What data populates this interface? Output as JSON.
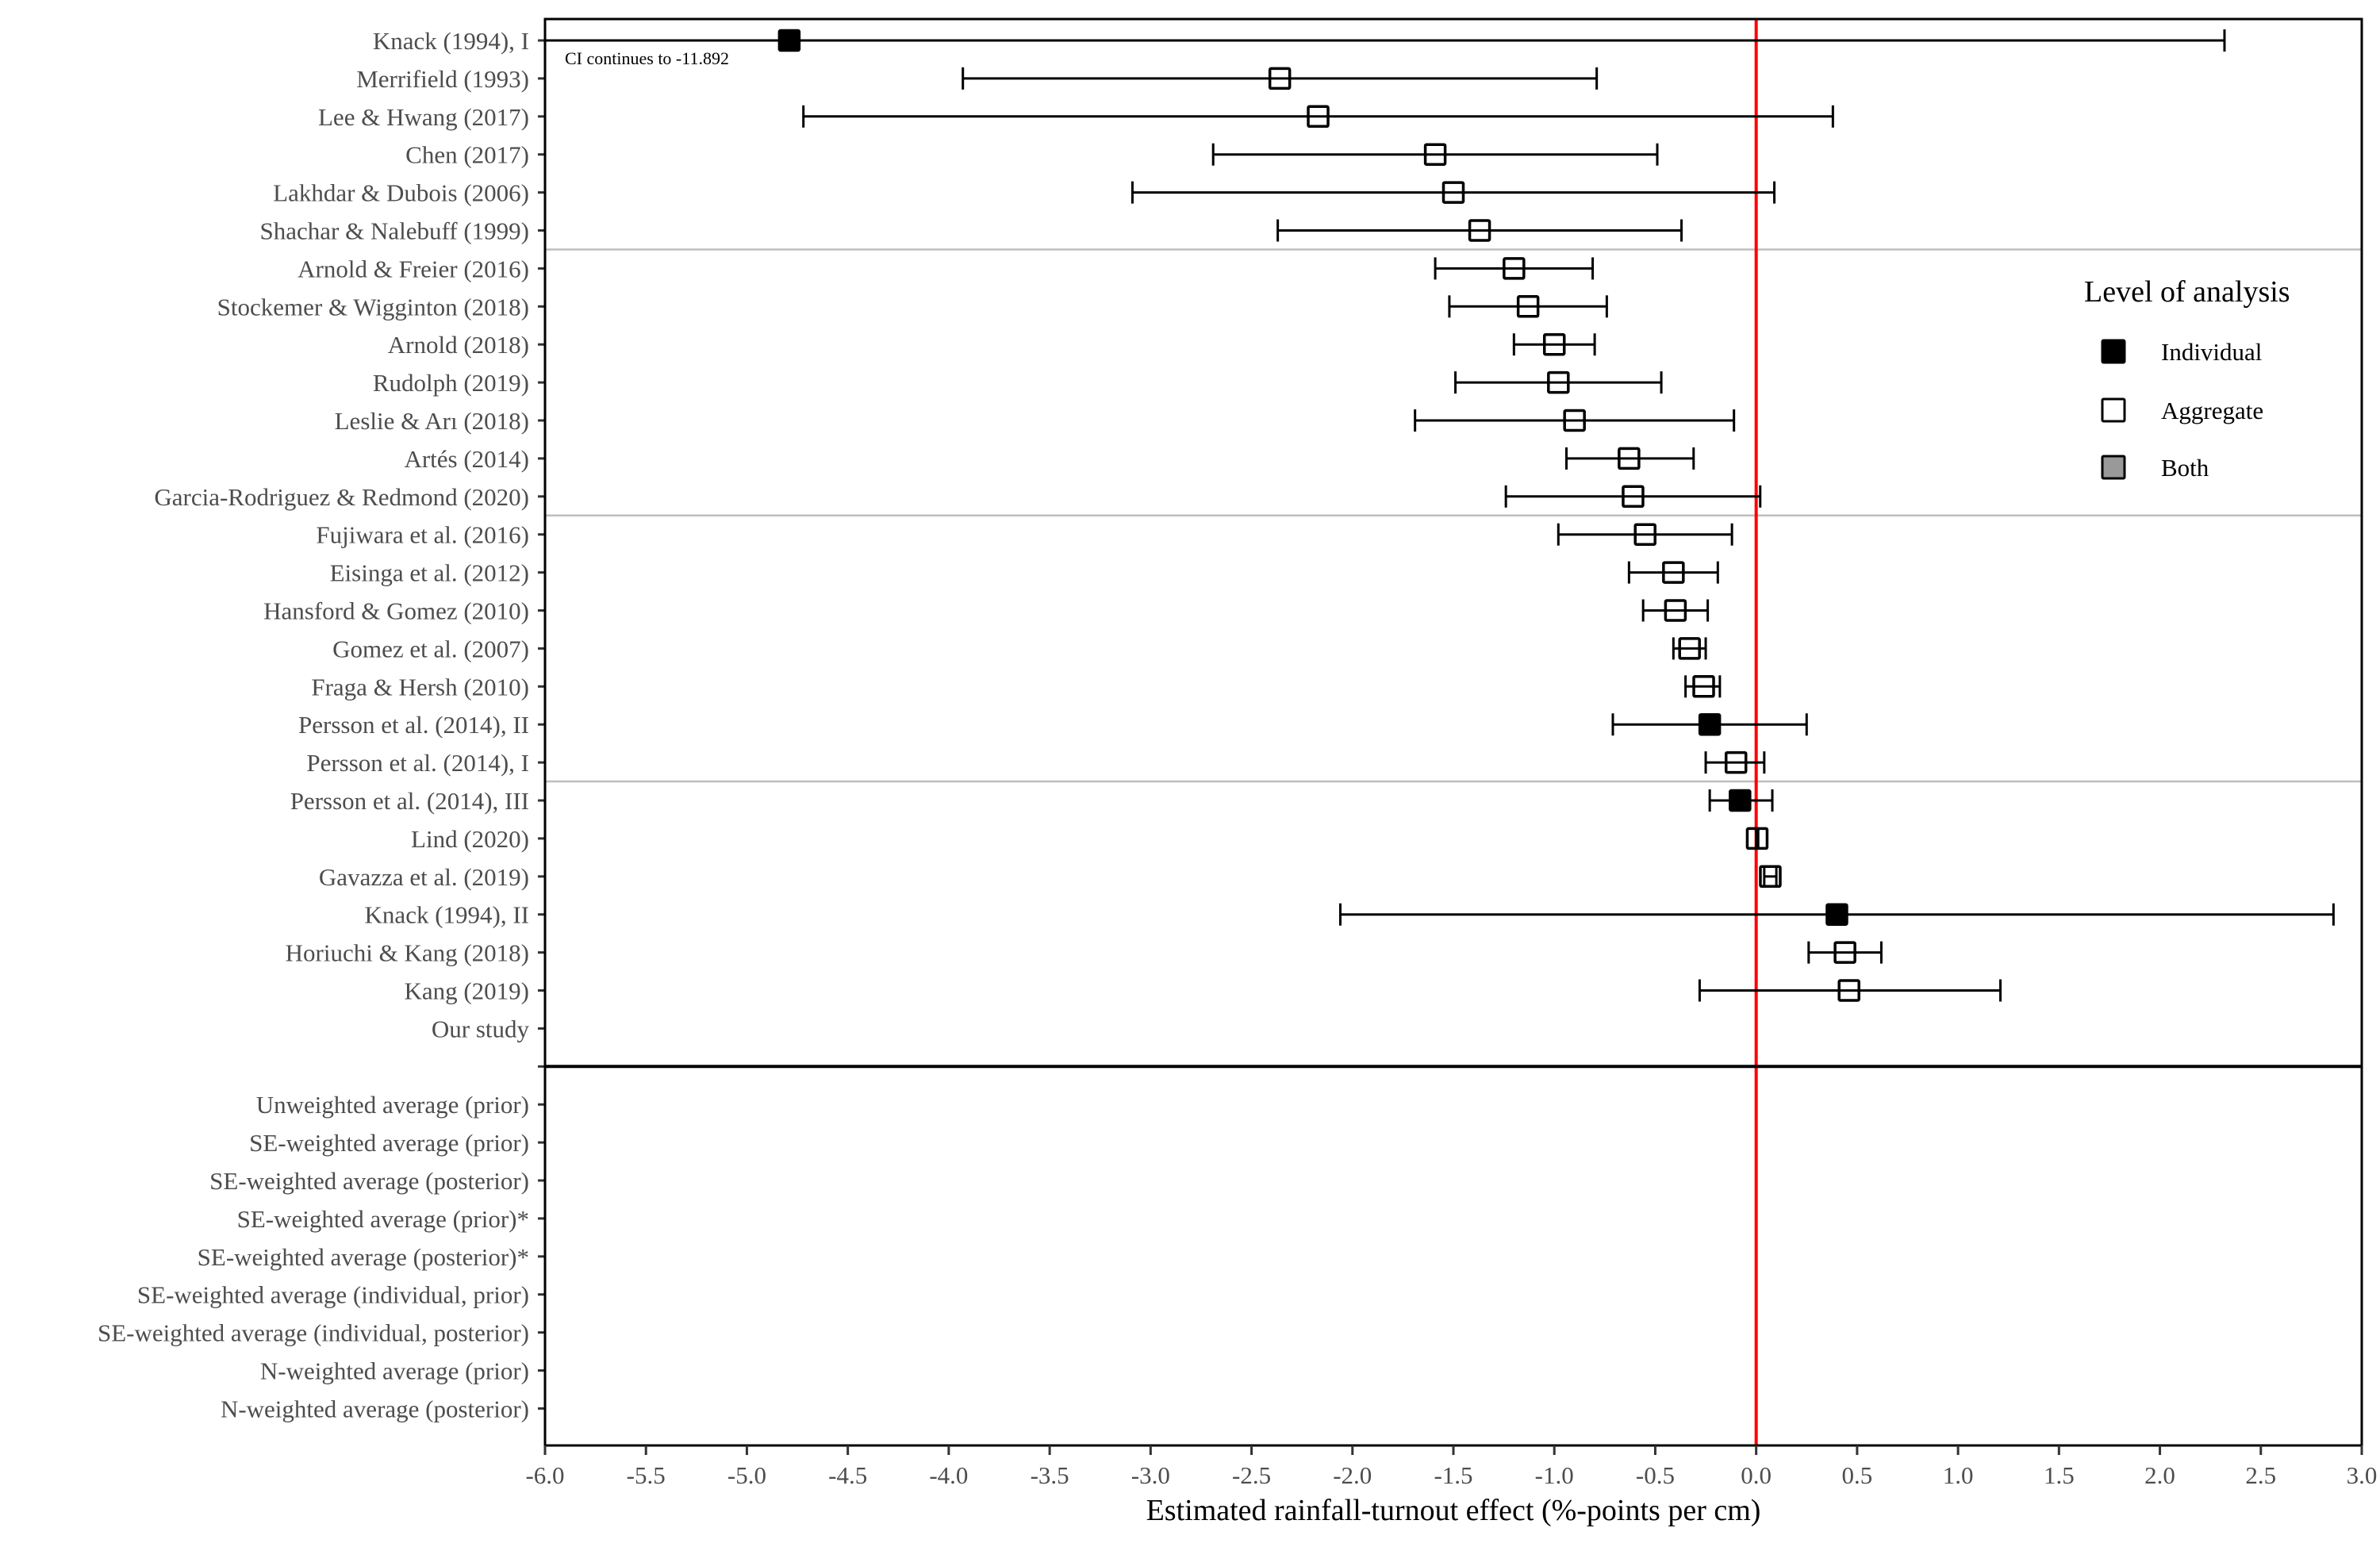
{
  "chart_data": {
    "type": "forest",
    "title": "",
    "xlabel": "Estimated rainfall-turnout effect (%-points per cm)",
    "ylabel": "",
    "xlim": [
      -6.0,
      3.0
    ],
    "xticks": [
      "-6.0",
      "-5.5",
      "-5.0",
      "-4.5",
      "-4.0",
      "-3.5",
      "-3.0",
      "-2.5",
      "-2.0",
      "-1.5",
      "-1.0",
      "-0.5",
      "0.0",
      "0.5",
      "1.0",
      "1.5",
      "2.0",
      "2.5",
      "3.0"
    ],
    "reference_line": {
      "x": 0.0,
      "color": "#ff0000"
    },
    "annotation": {
      "text": "CI continues to -11.892",
      "row": "Knack (1994), I"
    },
    "legend": {
      "title": "Level of analysis",
      "position": "right",
      "items": [
        {
          "label": "Individual",
          "fill": "#000000"
        },
        {
          "label": "Aggregate",
          "fill": "#ffffff"
        },
        {
          "label": "Both",
          "fill": "#999999"
        }
      ]
    },
    "group_separators_after": [
      "Shachar & Nalebuff (1999)",
      "Garcia-Rodriguez & Redmond (2020)",
      "Persson et al. (2014), I"
    ],
    "main_separator_after": "Our study",
    "studies": [
      {
        "label": "Knack (1994), I",
        "estimate": -4.79,
        "lower": -11.892,
        "upper": 2.32,
        "level": "Individual"
      },
      {
        "label": "Merrifield (1993)",
        "estimate": -2.36,
        "lower": -3.93,
        "upper": -0.79,
        "level": "Aggregate"
      },
      {
        "label": "Lee & Hwang (2017)",
        "estimate": -2.17,
        "lower": -4.72,
        "upper": 0.38,
        "level": "Aggregate"
      },
      {
        "label": "Chen (2017)",
        "estimate": -1.59,
        "lower": -2.69,
        "upper": -0.49,
        "level": "Aggregate"
      },
      {
        "label": "Lakhdar & Dubois (2006)",
        "estimate": -1.5,
        "lower": -3.09,
        "upper": 0.09,
        "level": "Aggregate"
      },
      {
        "label": "Shachar & Nalebuff (1999)",
        "estimate": -1.37,
        "lower": -2.37,
        "upper": -0.37,
        "level": "Aggregate"
      },
      {
        "label": "Arnold & Freier (2016)",
        "estimate": -1.2,
        "lower": -1.59,
        "upper": -0.81,
        "level": "Aggregate"
      },
      {
        "label": "Stockemer & Wigginton (2018)",
        "estimate": -1.13,
        "lower": -1.52,
        "upper": -0.74,
        "level": "Aggregate"
      },
      {
        "label": "Arnold (2018)",
        "estimate": -1.0,
        "lower": -1.2,
        "upper": -0.8,
        "level": "Aggregate"
      },
      {
        "label": "Rudolph (2019)",
        "estimate": -0.98,
        "lower": -1.49,
        "upper": -0.47,
        "level": "Aggregate"
      },
      {
        "label": "Leslie & Arı (2018)",
        "estimate": -0.9,
        "lower": -1.69,
        "upper": -0.11,
        "level": "Aggregate"
      },
      {
        "label": "Artés (2014)",
        "estimate": -0.63,
        "lower": -0.94,
        "upper": -0.31,
        "level": "Aggregate"
      },
      {
        "label": "Garcia-Rodriguez & Redmond (2020)",
        "estimate": -0.61,
        "lower": -1.24,
        "upper": 0.02,
        "level": "Aggregate"
      },
      {
        "label": "Fujiwara et al. (2016)",
        "estimate": -0.55,
        "lower": -0.98,
        "upper": -0.12,
        "level": "Aggregate"
      },
      {
        "label": "Eisinga et al. (2012)",
        "estimate": -0.41,
        "lower": -0.63,
        "upper": -0.19,
        "level": "Aggregate"
      },
      {
        "label": "Hansford & Gomez (2010)",
        "estimate": -0.4,
        "lower": -0.56,
        "upper": -0.24,
        "level": "Aggregate"
      },
      {
        "label": "Gomez et al. (2007)",
        "estimate": -0.33,
        "lower": -0.41,
        "upper": -0.25,
        "level": "Aggregate"
      },
      {
        "label": "Fraga & Hersh (2010)",
        "estimate": -0.26,
        "lower": -0.35,
        "upper": -0.18,
        "level": "Aggregate"
      },
      {
        "label": "Persson et al. (2014), II",
        "estimate": -0.23,
        "lower": -0.71,
        "upper": 0.25,
        "level": "Individual"
      },
      {
        "label": "Persson et al. (2014), I",
        "estimate": -0.1,
        "lower": -0.25,
        "upper": 0.04,
        "level": "Aggregate"
      },
      {
        "label": "Persson et al. (2014), III",
        "estimate": -0.08,
        "lower": -0.23,
        "upper": 0.08,
        "level": "Individual"
      },
      {
        "label": "Lind (2020)",
        "estimate": 0.005,
        "lower": 0.0,
        "upper": 0.01,
        "level": "Aggregate"
      },
      {
        "label": "Gavazza et al. (2019)",
        "estimate": 0.07,
        "lower": 0.04,
        "upper": 0.1,
        "level": "Aggregate"
      },
      {
        "label": "Knack (1994), II",
        "estimate": 0.4,
        "lower": -2.06,
        "upper": 2.86,
        "level": "Individual"
      },
      {
        "label": "Horiuchi & Kang (2018)",
        "estimate": 0.44,
        "lower": 0.26,
        "upper": 0.62,
        "level": "Aggregate"
      },
      {
        "label": "Kang (2019)",
        "estimate": 0.46,
        "lower": -0.28,
        "upper": 1.21,
        "level": "Aggregate"
      },
      {
        "label": "Our study",
        "estimate": null,
        "lower": null,
        "upper": null,
        "level": null
      }
    ],
    "summary_rows": [
      {
        "label": "Unweighted average (prior)"
      },
      {
        "label": "SE-weighted average (prior)"
      },
      {
        "label": "SE-weighted average (posterior)"
      },
      {
        "label": "SE-weighted average (prior)*"
      },
      {
        "label": "SE-weighted average (posterior)*"
      },
      {
        "label": "SE-weighted average (individual, prior)"
      },
      {
        "label": "SE-weighted average (individual, posterior)"
      },
      {
        "label": "N-weighted average (prior)"
      },
      {
        "label": "N-weighted average (posterior)"
      }
    ]
  }
}
